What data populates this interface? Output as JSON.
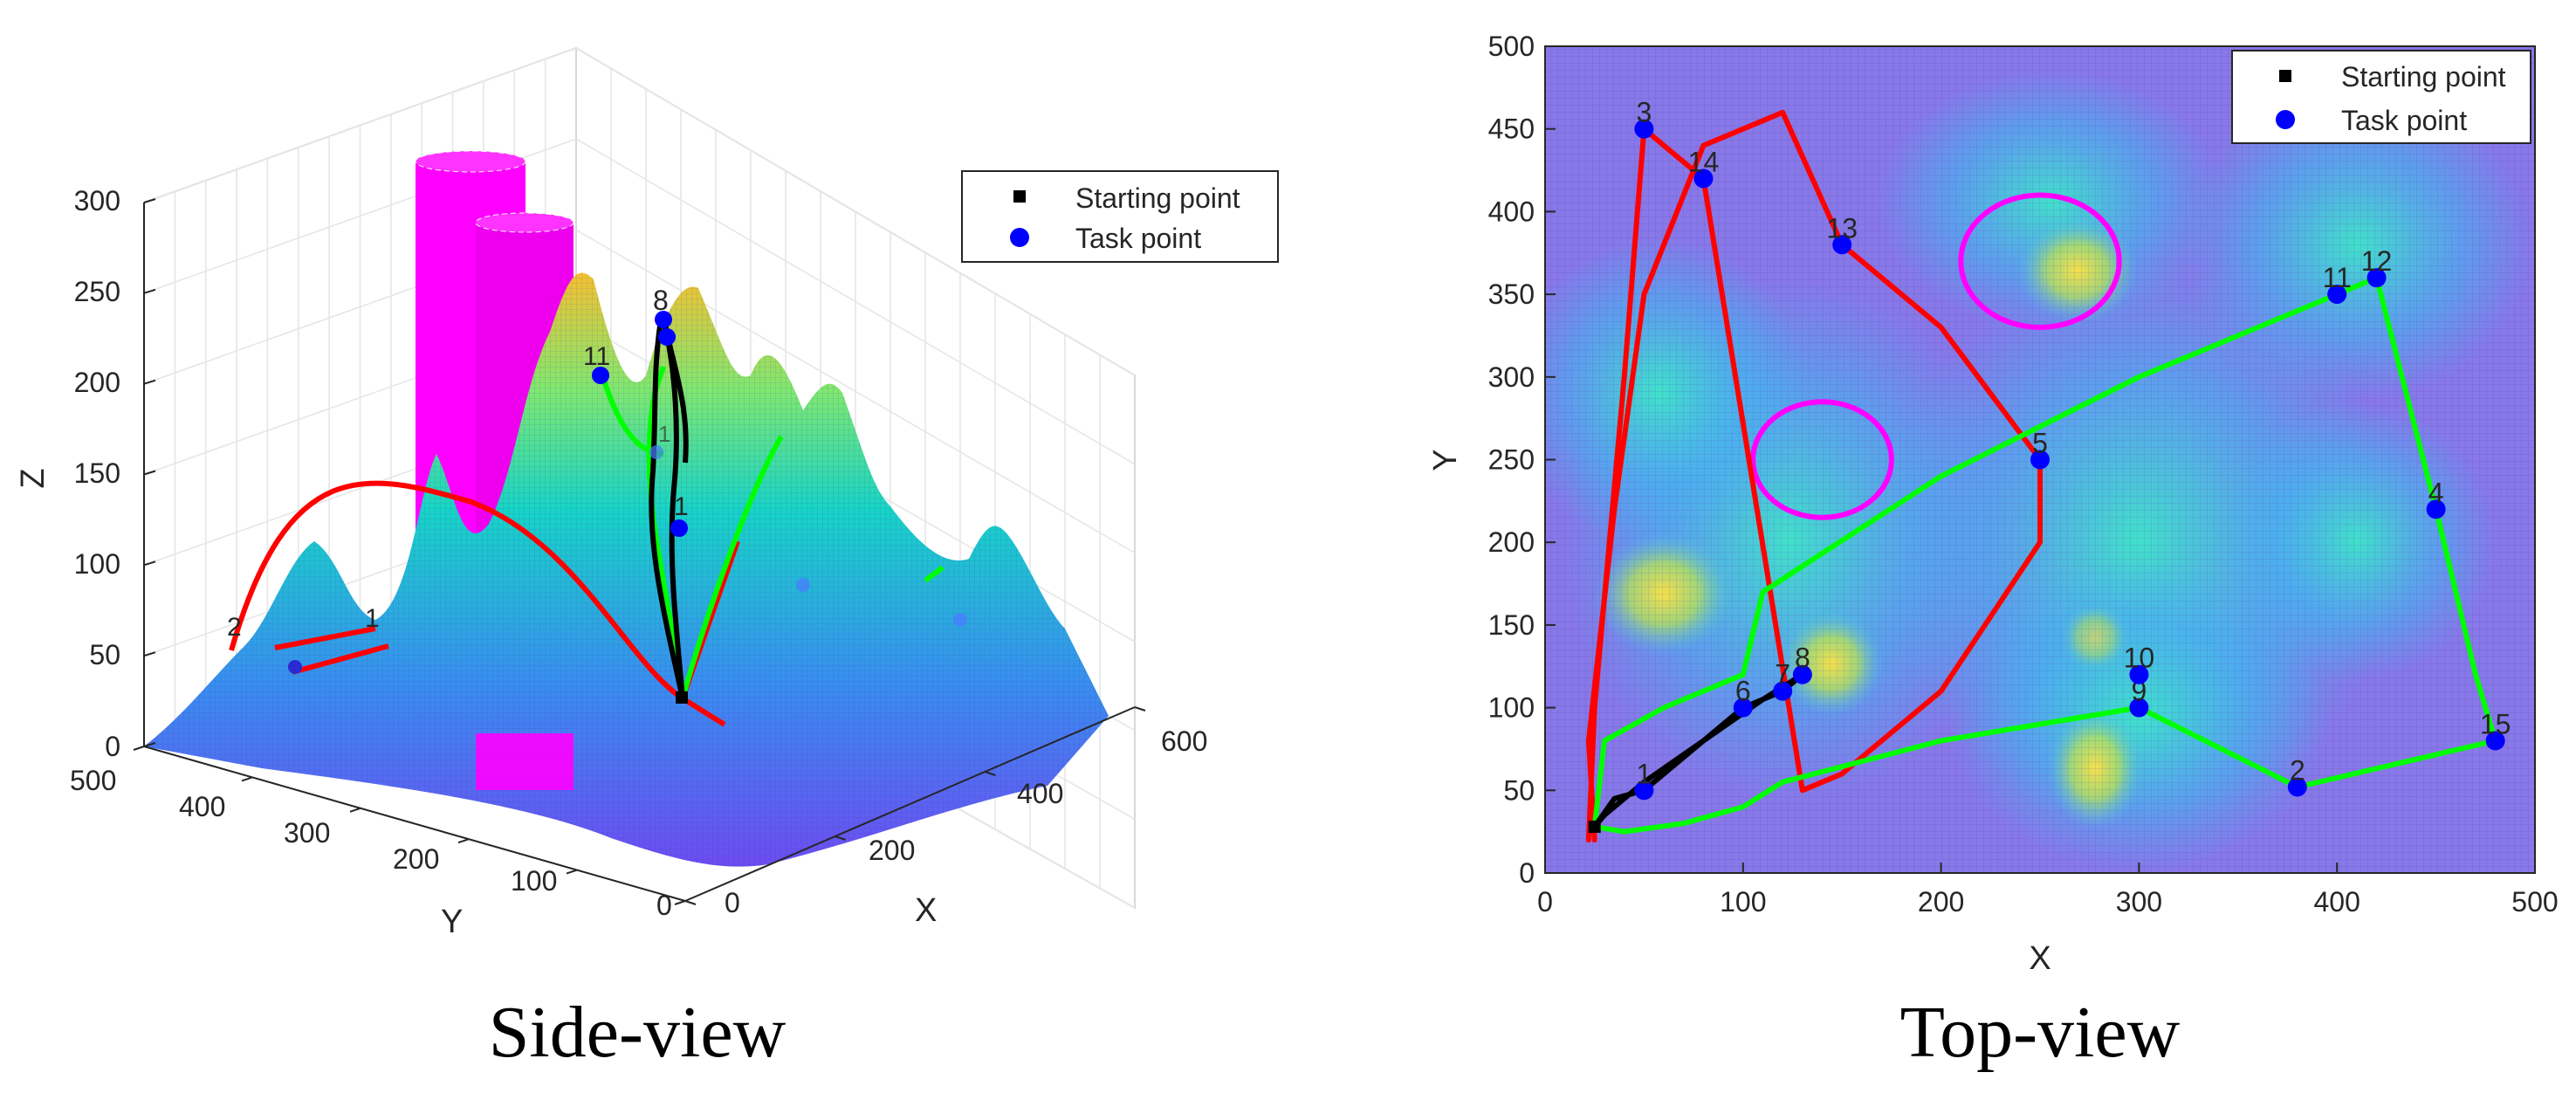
{
  "figure": {
    "left_caption": "Side-view",
    "right_caption": "Top-view"
  },
  "legend": {
    "start_label": "Starting point",
    "task_label": "Task point"
  },
  "colors": {
    "red_path": "#ff0000",
    "green_path": "#00ff00",
    "black_path": "#000000",
    "task_point": "#0000ff",
    "obstacle": "#ff00ff"
  },
  "chart_data": [
    {
      "type": "surface3d",
      "title": "Side-view",
      "xlabel": "X",
      "ylabel": "Y",
      "zlabel": "Z",
      "xlim": [
        0,
        600
      ],
      "ylim": [
        0,
        500
      ],
      "zlim": [
        0,
        300
      ],
      "x_ticks": [
        0,
        200,
        400,
        600
      ],
      "y_ticks": [
        500,
        400,
        300,
        200,
        100,
        0
      ],
      "z_ticks": [
        0,
        50,
        100,
        150,
        200,
        250,
        300
      ],
      "visible_point_labels": [
        "2",
        "1",
        "8",
        "11",
        "1",
        "1"
      ],
      "annotations": [
        "2",
        "1",
        "8",
        "11",
        "1",
        "1"
      ]
    },
    {
      "type": "line",
      "title": "Top-view",
      "xlabel": "X",
      "ylabel": "Y",
      "xlim": [
        0,
        500
      ],
      "ylim": [
        0,
        500
      ],
      "x_ticks": [
        0,
        100,
        200,
        300,
        400,
        500
      ],
      "y_ticks": [
        0,
        50,
        100,
        150,
        200,
        250,
        300,
        350,
        400,
        450,
        500
      ],
      "start_point": {
        "x": 25,
        "y": 28
      },
      "task_points": [
        {
          "label": "1",
          "x": 50,
          "y": 50
        },
        {
          "label": "2",
          "x": 380,
          "y": 52
        },
        {
          "label": "3",
          "x": 50,
          "y": 450
        },
        {
          "label": "4",
          "x": 450,
          "y": 220
        },
        {
          "label": "5",
          "x": 250,
          "y": 250
        },
        {
          "label": "6",
          "x": 100,
          "y": 100
        },
        {
          "label": "7",
          "x": 120,
          "y": 110
        },
        {
          "label": "8",
          "x": 130,
          "y": 120
        },
        {
          "label": "9",
          "x": 300,
          "y": 100
        },
        {
          "label": "10",
          "x": 300,
          "y": 120
        },
        {
          "label": "11",
          "x": 400,
          "y": 350
        },
        {
          "label": "12",
          "x": 420,
          "y": 360
        },
        {
          "label": "13",
          "x": 150,
          "y": 380
        },
        {
          "label": "14",
          "x": 80,
          "y": 420
        },
        {
          "label": "15",
          "x": 480,
          "y": 80
        }
      ],
      "obstacles": [
        {
          "cx": 250,
          "cy": 370,
          "r": 40
        },
        {
          "cx": 140,
          "cy": 250,
          "r": 35
        }
      ],
      "series": [
        {
          "name": "red route",
          "color": "#ff0000",
          "x": [
            25,
            22,
            35,
            50,
            80,
            120,
            150,
            200,
            250,
            250,
            200,
            150,
            130,
            80,
            55,
            50,
            40,
            25,
            22
          ],
          "y": [
            20,
            80,
            220,
            350,
            440,
            460,
            380,
            330,
            250,
            200,
            110,
            60,
            50,
            420,
            445,
            450,
            300,
            100,
            20
          ]
        },
        {
          "name": "green route",
          "color": "#00ff00",
          "x": [
            25,
            40,
            70,
            100,
            120,
            200,
            300,
            300,
            380,
            480,
            470,
            450,
            420,
            400,
            300,
            200,
            110,
            100,
            60,
            30,
            25
          ],
          "y": [
            28,
            25,
            30,
            40,
            55,
            80,
            100,
            100,
            52,
            80,
            120,
            220,
            360,
            350,
            300,
            240,
            170,
            120,
            100,
            80,
            28
          ]
        },
        {
          "name": "black route",
          "color": "#000000",
          "x": [
            25,
            35,
            50,
            70,
            100,
            120,
            130,
            110,
            80,
            50,
            30,
            25
          ],
          "y": [
            28,
            45,
            50,
            70,
            100,
            110,
            120,
            105,
            80,
            55,
            35,
            28
          ]
        }
      ]
    }
  ]
}
